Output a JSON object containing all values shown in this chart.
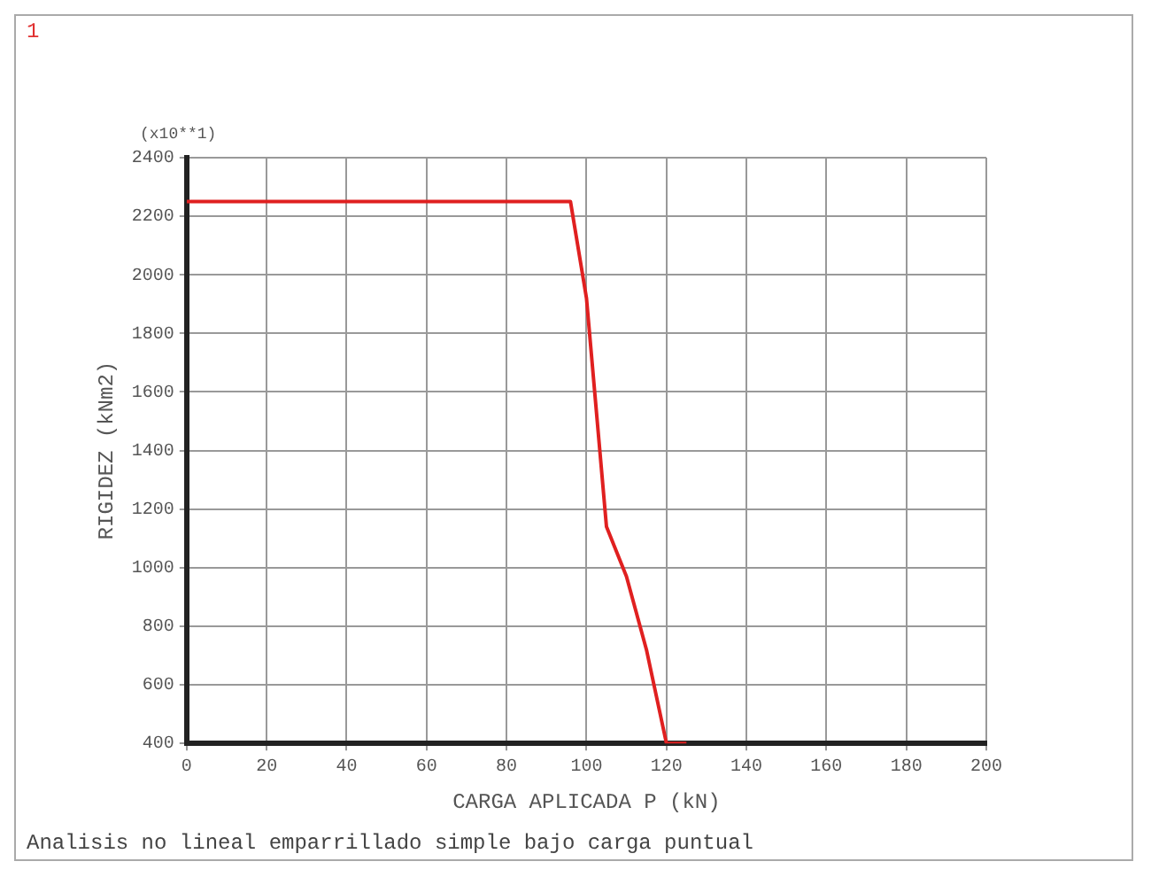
{
  "chart_data": {
    "type": "line",
    "xlabel": "CARGA APLICADA P (kN)",
    "ylabel": "RIGIDEZ (kNm2)",
    "annotations": [
      "1",
      "(x10**1)",
      "Analisis no lineal emparrillado simple bajo carga puntual"
    ],
    "x": [
      0,
      96,
      100,
      105,
      110,
      115,
      120,
      125
    ],
    "series": [
      {
        "color": "#e02020",
        "values": [
          2250,
          2250,
          1920,
          1140,
          970,
          720,
          400,
          400
        ]
      }
    ],
    "xlim": [
      0,
      200
    ],
    "xticks": [
      0,
      20,
      40,
      60,
      80,
      100,
      120,
      140,
      160,
      180,
      200
    ],
    "ylim": [
      400,
      2400
    ],
    "yticks": [
      400,
      600,
      800,
      1000,
      1200,
      1400,
      1600,
      1800,
      2000,
      2200,
      2400
    ],
    "grid": true,
    "legend": false,
    "marker": "none",
    "line_style": "solid"
  }
}
